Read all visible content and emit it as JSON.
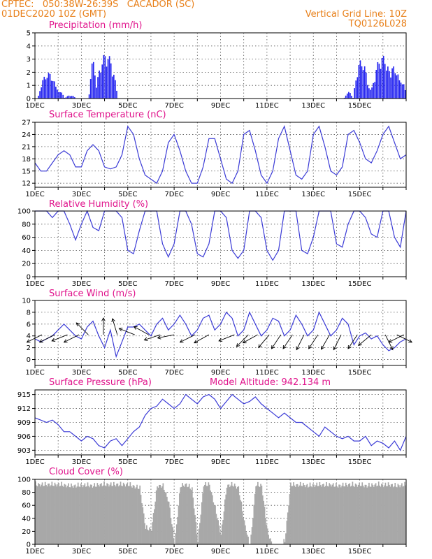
{
  "header": {
    "line1": "CPTEC:   050:38W-26:39S   CACADOR (SC)",
    "line2": "01DEC2020 10Z (GMT)",
    "grid_note": "Vertical Grid Line: 10Z",
    "run_id": "TQ0126L028"
  },
  "colors": {
    "header": "#e8801a",
    "title": "#e0148c",
    "line": "#3b3bd6",
    "precip": "#2626f0",
    "cloud": "#a8a8a8"
  },
  "chart_data": [
    {
      "type": "bar",
      "title": "Precipitation (mm/h)",
      "ylim": [
        0,
        5
      ],
      "yticks": [
        0,
        1,
        2,
        3,
        4,
        5
      ],
      "ytick_labels": [
        "0",
        "1",
        "2",
        "3",
        "4",
        "5"
      ],
      "xticks": [
        "1DEC",
        "3DEC",
        "5DEC",
        "7DEC",
        "9DEC",
        "11DEC",
        "13DEC",
        "15DEC"
      ],
      "x_unit": "days since 1DEC 10Z",
      "events": [
        {
          "center": 0.55,
          "width": 0.45,
          "peak": 2.0
        },
        {
          "center": 0.92,
          "width": 0.35,
          "peak": 0.7
        },
        {
          "center": 1.5,
          "width": 0.25,
          "peak": 0.25
        },
        {
          "center": 2.48,
          "width": 0.18,
          "peak": 2.9
        },
        {
          "center": 2.75,
          "width": 0.2,
          "peak": 0.7
        },
        {
          "center": 3.05,
          "width": 0.5,
          "peak": 3.5
        },
        {
          "center": 13.5,
          "width": 0.2,
          "peak": 0.5
        },
        {
          "center": 14.05,
          "width": 0.35,
          "peak": 3.0
        },
        {
          "center": 14.45,
          "width": 0.2,
          "peak": 1.0
        },
        {
          "center": 14.95,
          "width": 0.5,
          "peak": 3.3
        },
        {
          "center": 15.45,
          "width": 0.35,
          "peak": 2.5
        },
        {
          "center": 15.75,
          "width": 0.25,
          "peak": 1.5
        }
      ]
    },
    {
      "type": "line",
      "title": "Surface Temperature (nC)",
      "ylim": [
        11,
        27
      ],
      "yticks": [
        12,
        15,
        18,
        21,
        24,
        27
      ],
      "ytick_labels": [
        "12",
        "15",
        "18",
        "21",
        "24",
        "27"
      ],
      "xticks": [
        "1DEC",
        "3DEC",
        "5DEC",
        "7DEC",
        "9DEC",
        "11DEC",
        "13DEC",
        "15DEC"
      ],
      "x": [
        0,
        0.25,
        0.5,
        0.75,
        1,
        1.25,
        1.5,
        1.75,
        2,
        2.25,
        2.5,
        2.75,
        3,
        3.25,
        3.5,
        3.75,
        4,
        4.25,
        4.5,
        4.75,
        5,
        5.25,
        5.5,
        5.75,
        6,
        6.25,
        6.5,
        6.75,
        7,
        7.25,
        7.5,
        7.75,
        8,
        8.25,
        8.5,
        8.75,
        9,
        9.25,
        9.5,
        9.75,
        10,
        10.25,
        10.5,
        10.75,
        11,
        11.25,
        11.5,
        11.75,
        12,
        12.25,
        12.5,
        12.75,
        13,
        13.25,
        13.5,
        13.75,
        14,
        14.25,
        14.5,
        14.75,
        15,
        15.25,
        15.5,
        15.75,
        16
      ],
      "y": [
        17,
        15,
        15,
        17,
        19,
        20,
        19,
        16,
        16,
        20,
        21.5,
        20,
        16,
        15.5,
        16,
        19,
        26,
        24,
        18,
        14,
        13,
        12,
        15,
        22,
        24,
        20,
        15,
        12,
        12,
        16,
        23,
        23,
        18,
        13,
        12,
        15,
        24,
        25,
        20,
        14,
        12,
        15,
        23,
        26,
        20,
        14,
        13,
        15,
        24,
        26,
        21,
        15,
        14,
        16,
        24,
        25,
        22,
        18,
        17,
        20,
        24,
        26,
        22,
        18,
        19
      ]
    },
    {
      "type": "line",
      "title": "Relative Humidity (%)",
      "ylim": [
        0,
        100
      ],
      "yticks": [
        0,
        20,
        40,
        60,
        80,
        100
      ],
      "ytick_labels": [
        "0",
        "20",
        "40",
        "60",
        "80",
        "100"
      ],
      "xticks": [
        "1DEC",
        "3DEC",
        "5DEC",
        "7DEC",
        "9DEC",
        "11DEC",
        "13DEC",
        "15DEC"
      ],
      "x": [
        0,
        0.25,
        0.5,
        0.75,
        1,
        1.25,
        1.5,
        1.75,
        2,
        2.25,
        2.5,
        2.75,
        3,
        3.25,
        3.5,
        3.75,
        4,
        4.25,
        4.5,
        4.75,
        5,
        5.25,
        5.5,
        5.75,
        6,
        6.25,
        6.5,
        6.75,
        7,
        7.25,
        7.5,
        7.75,
        8,
        8.25,
        8.5,
        8.75,
        9,
        9.25,
        9.5,
        9.75,
        10,
        10.25,
        10.5,
        10.75,
        11,
        11.25,
        11.5,
        11.75,
        12,
        12.25,
        12.5,
        12.75,
        13,
        13.25,
        13.5,
        13.75,
        14,
        14.25,
        14.5,
        14.75,
        15,
        15.25,
        15.5,
        15.75,
        16
      ],
      "y": [
        100,
        100,
        100,
        90,
        100,
        100,
        80,
        56,
        80,
        100,
        75,
        70,
        100,
        100,
        100,
        90,
        40,
        35,
        70,
        100,
        100,
        100,
        50,
        30,
        50,
        100,
        100,
        80,
        35,
        30,
        50,
        100,
        100,
        90,
        40,
        28,
        40,
        100,
        100,
        90,
        40,
        25,
        40,
        100,
        100,
        100,
        40,
        35,
        60,
        100,
        100,
        100,
        50,
        45,
        80,
        100,
        100,
        90,
        65,
        60,
        100,
        100,
        60,
        45,
        100
      ]
    },
    {
      "type": "line",
      "title": "Surface Wind (m/s)",
      "ylim": [
        -1,
        10
      ],
      "yticks": [
        0,
        2,
        4,
        6,
        8,
        10
      ],
      "ytick_labels": [
        "0",
        "2",
        "4",
        "6",
        "8",
        "10"
      ],
      "xticks": [
        "1DEC",
        "3DEC",
        "5DEC",
        "7DEC",
        "9DEC",
        "11DEC",
        "13DEC",
        "15DEC"
      ],
      "x": [
        0,
        0.25,
        0.5,
        0.75,
        1,
        1.25,
        1.5,
        1.75,
        2,
        2.25,
        2.5,
        2.75,
        3,
        3.25,
        3.5,
        3.75,
        4,
        4.25,
        4.5,
        4.75,
        5,
        5.25,
        5.5,
        5.75,
        6,
        6.25,
        6.5,
        6.75,
        7,
        7.25,
        7.5,
        7.75,
        8,
        8.25,
        8.5,
        8.75,
        9,
        9.25,
        9.5,
        9.75,
        10,
        10.25,
        10.5,
        10.75,
        11,
        11.25,
        11.5,
        11.75,
        12,
        12.25,
        12.5,
        12.75,
        13,
        13.25,
        13.5,
        13.75,
        14,
        14.25,
        14.5,
        14.75,
        15,
        15.25,
        15.5,
        15.75,
        16
      ],
      "y": [
        3.5,
        3,
        3.5,
        4,
        5,
        6,
        5,
        4,
        3.5,
        5.5,
        6.5,
        4,
        2,
        5,
        0.5,
        3,
        5.5,
        5.5,
        6,
        5,
        4,
        6,
        7,
        5,
        6,
        7.5,
        6,
        4,
        5,
        7,
        7.5,
        5,
        6,
        8,
        7,
        4,
        5,
        8,
        6,
        4,
        5,
        7,
        6.5,
        4,
        5,
        7.5,
        6,
        4,
        5,
        8,
        6,
        4,
        5,
        7,
        6,
        2.5,
        4,
        4.5,
        3.5,
        4,
        2.5,
        1.5,
        2,
        3,
        3.5
      ],
      "arrows": [
        {
          "x": 0.3,
          "u": 1.0,
          "v": 0.5
        },
        {
          "x": 0.85,
          "u": 1.0,
          "v": 0.5
        },
        {
          "x": 1.4,
          "u": 1.0,
          "v": 0.4
        },
        {
          "x": 1.9,
          "u": 1.0,
          "v": 0.5
        },
        {
          "x": 2.3,
          "u": 0.4,
          "v": -0.4
        },
        {
          "x": 2.95,
          "u": 0.0,
          "v": -1.0
        },
        {
          "x": 3.55,
          "u": 0.3,
          "v": -1.0
        },
        {
          "x": 4.3,
          "u": 1.0,
          "v": -0.4
        },
        {
          "x": 4.9,
          "u": 0.9,
          "v": -0.5
        },
        {
          "x": 5.4,
          "u": 0.9,
          "v": 0.3
        },
        {
          "x": 6.0,
          "u": 1.0,
          "v": 0.2
        },
        {
          "x": 6.9,
          "u": 1.0,
          "v": 0.5
        },
        {
          "x": 7.5,
          "u": 0.9,
          "v": 0.5
        },
        {
          "x": 8.6,
          "u": 1.0,
          "v": 0.4
        },
        {
          "x": 9.2,
          "u": 0.5,
          "v": 0.5
        },
        {
          "x": 9.6,
          "u": 0.9,
          "v": 0.5
        },
        {
          "x": 10.1,
          "u": 0.5,
          "v": 0.6
        },
        {
          "x": 10.6,
          "u": 0.4,
          "v": 0.6
        },
        {
          "x": 11.1,
          "u": 0.4,
          "v": 0.6
        },
        {
          "x": 11.6,
          "u": 0.3,
          "v": 0.6
        },
        {
          "x": 12.2,
          "u": 0.4,
          "v": 0.6
        },
        {
          "x": 12.7,
          "u": 0.4,
          "v": 0.7
        },
        {
          "x": 13.2,
          "u": 0.3,
          "v": 0.6
        },
        {
          "x": 13.9,
          "u": 0.4,
          "v": 0.6
        },
        {
          "x": 14.5,
          "u": 0.6,
          "v": 0.5
        },
        {
          "x": 15.1,
          "u": -0.3,
          "v": 0.6
        },
        {
          "x": 15.6,
          "u": -0.6,
          "v": 0.3
        },
        {
          "x": 15.9,
          "u": 0.6,
          "v": 0.3
        }
      ]
    },
    {
      "type": "line",
      "title": "Surface Pressure (hPa)",
      "subtitle": "Model Altitude: 942.134 m",
      "ylim": [
        902,
        916
      ],
      "yticks": [
        903,
        906,
        909,
        912,
        915
      ],
      "ytick_labels": [
        "903",
        "906",
        "909",
        "912",
        "915"
      ],
      "xticks": [
        "1DEC",
        "3DEC",
        "5DEC",
        "7DEC",
        "9DEC",
        "11DEC",
        "13DEC",
        "15DEC"
      ],
      "x": [
        0,
        0.25,
        0.5,
        0.75,
        1,
        1.25,
        1.5,
        1.75,
        2,
        2.25,
        2.5,
        2.75,
        3,
        3.25,
        3.5,
        3.75,
        4,
        4.25,
        4.5,
        4.75,
        5,
        5.25,
        5.5,
        5.75,
        6,
        6.25,
        6.5,
        6.75,
        7,
        7.25,
        7.5,
        7.75,
        8,
        8.25,
        8.5,
        8.75,
        9,
        9.25,
        9.5,
        9.75,
        10,
        10.25,
        10.5,
        10.75,
        11,
        11.25,
        11.5,
        11.75,
        12,
        12.25,
        12.5,
        12.75,
        13,
        13.25,
        13.5,
        13.75,
        14,
        14.25,
        14.5,
        14.75,
        15,
        15.25,
        15.5,
        15.75,
        16
      ],
      "y": [
        910,
        909.5,
        909,
        909.5,
        908.5,
        907,
        907,
        906,
        905,
        906,
        905.5,
        904,
        903.5,
        905,
        905.5,
        904,
        905.5,
        907,
        908,
        910.5,
        912,
        912.5,
        914,
        913,
        912,
        913,
        915,
        914,
        913,
        914.5,
        915,
        914,
        912,
        913.5,
        915,
        914,
        913,
        913.5,
        914.5,
        913,
        912,
        911,
        910,
        911,
        910,
        909,
        909,
        908,
        907,
        906,
        908,
        907,
        906,
        905.5,
        906,
        905,
        905,
        906,
        904,
        905,
        904.5,
        903.5,
        905,
        903,
        906
      ]
    },
    {
      "type": "area",
      "title": "Cloud Cover (%)",
      "ylim": [
        0,
        100
      ],
      "yticks": [
        0,
        20,
        40,
        60,
        80,
        100
      ],
      "ytick_labels": [
        "0",
        "20",
        "40",
        "60",
        "80",
        "100"
      ],
      "xticks": [
        "1DEC",
        "3DEC",
        "5DEC",
        "7DEC",
        "9DEC",
        "11DEC",
        "13DEC",
        "15DEC"
      ],
      "x": [
        0,
        0.25,
        0.5,
        0.75,
        1,
        1.25,
        1.5,
        1.75,
        2,
        2.25,
        2.5,
        2.75,
        3,
        3.25,
        3.5,
        3.75,
        4,
        4.25,
        4.5,
        4.75,
        5,
        5.25,
        5.5,
        5.75,
        6,
        6.25,
        6.5,
        6.75,
        7,
        7.25,
        7.5,
        7.75,
        8,
        8.25,
        8.5,
        8.75,
        9,
        9.25,
        9.5,
        9.75,
        10,
        10.25,
        10.5,
        10.75,
        11,
        11.25,
        11.5,
        11.75,
        12,
        12.25,
        12.5,
        12.75,
        13,
        13.25,
        13.5,
        13.75,
        14,
        14.25,
        14.5,
        14.75,
        15,
        15.25,
        15.5,
        15.75,
        16
      ],
      "y": [
        97,
        97,
        97,
        97,
        97,
        96,
        95,
        95,
        96,
        96,
        95,
        97,
        97,
        97,
        97,
        97,
        97,
        94,
        92,
        30,
        28,
        95,
        95,
        70,
        5,
        95,
        97,
        90,
        10,
        97,
        97,
        60,
        20,
        95,
        97,
        92,
        40,
        0,
        97,
        95,
        25,
        0,
        0,
        10,
        97,
        96,
        97,
        95,
        96,
        97,
        96,
        97,
        95,
        96,
        97,
        96,
        97,
        95,
        96,
        97,
        96,
        97,
        95,
        96,
        97
      ]
    }
  ],
  "panels": [
    {
      "title": "Precipitation (mm/h)",
      "subtitle": "",
      "y_labels": [
        "0",
        "1",
        "2",
        "3",
        "4",
        "5"
      ]
    },
    {
      "title": "Surface Temperature (nC)",
      "subtitle": "",
      "y_labels": [
        "12",
        "15",
        "18",
        "21",
        "24",
        "27"
      ]
    },
    {
      "title": "Relative Humidity (%)",
      "subtitle": "",
      "y_labels": [
        "0",
        "20",
        "40",
        "60",
        "80",
        "100"
      ]
    },
    {
      "title": "Surface Wind (m/s)",
      "subtitle": "",
      "y_labels": [
        "0",
        "2",
        "4",
        "6",
        "8",
        "10"
      ]
    },
    {
      "title": "Surface Pressure (hPa)",
      "subtitle": "Model Altitude: 942.134 m",
      "y_labels": [
        "903",
        "906",
        "909",
        "912",
        "915"
      ]
    },
    {
      "title": "Cloud Cover (%)",
      "subtitle": "",
      "y_labels": [
        "0",
        "20",
        "40",
        "60",
        "80",
        "100"
      ]
    }
  ],
  "x_labels": [
    "1DEC",
    "3DEC",
    "5DEC",
    "7DEC",
    "9DEC",
    "11DEC",
    "13DEC",
    "15DEC"
  ]
}
